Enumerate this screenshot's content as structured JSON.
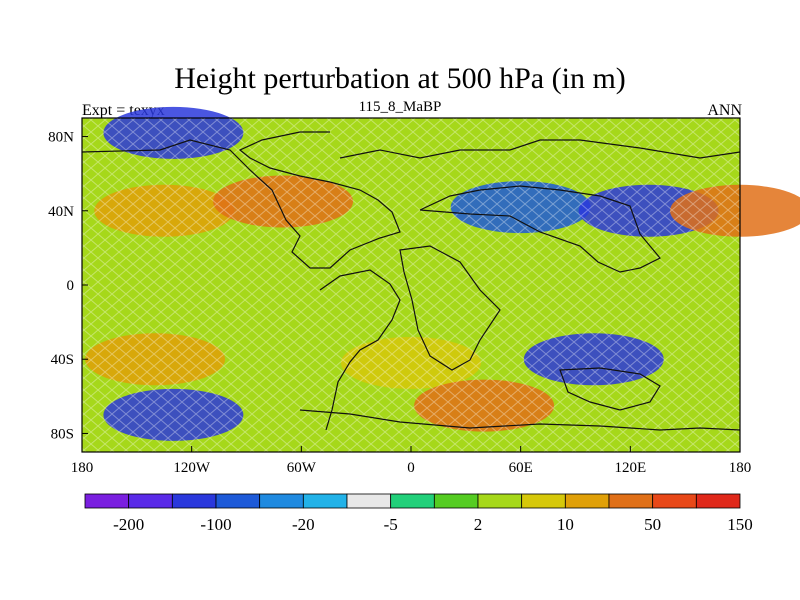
{
  "chart_data": {
    "type": "heatmap",
    "title": "Height perturbation at 500 hPa (in m)",
    "left_label": "Expt = texyx",
    "center_label": "115_8_MaBP",
    "right_label": "ANN",
    "x_ticks": [
      "180",
      "120W",
      "60W",
      "0",
      "60E",
      "120E",
      "180"
    ],
    "y_ticks": [
      "80N",
      "40N",
      "0",
      "40S",
      "80S"
    ],
    "colorbar": {
      "labels": [
        "-200",
        "-100",
        "-20",
        "-5",
        "2",
        "10",
        "50",
        "150"
      ],
      "colors": [
        "#7a1fe0",
        "#5a2ae8",
        "#2a38dc",
        "#1d5ad8",
        "#1f8ae0",
        "#22b2e8",
        "#e8e8e8",
        "#22d07a",
        "#55cc22",
        "#a6d81a",
        "#d6c80a",
        "#e0a008",
        "#e07018",
        "#e84818",
        "#e0281a"
      ]
    },
    "fields": [
      {
        "lat": 82,
        "lon": -130,
        "value": -100
      },
      {
        "lat": 40,
        "lon": -135,
        "value": 60
      },
      {
        "lat": 45,
        "lon": -70,
        "value": 80
      },
      {
        "lat": 42,
        "lon": 60,
        "value": -60
      },
      {
        "lat": 40,
        "lon": 130,
        "value": -120
      },
      {
        "lat": 40,
        "lon": 180,
        "value": 80
      },
      {
        "lat": -40,
        "lon": -140,
        "value": 60
      },
      {
        "lat": -42,
        "lon": 0,
        "value": 40
      },
      {
        "lat": -40,
        "lon": 100,
        "value": -120
      },
      {
        "lat": -70,
        "lon": -130,
        "value": -120
      },
      {
        "lat": -65,
        "lon": 40,
        "value": 90
      }
    ]
  }
}
